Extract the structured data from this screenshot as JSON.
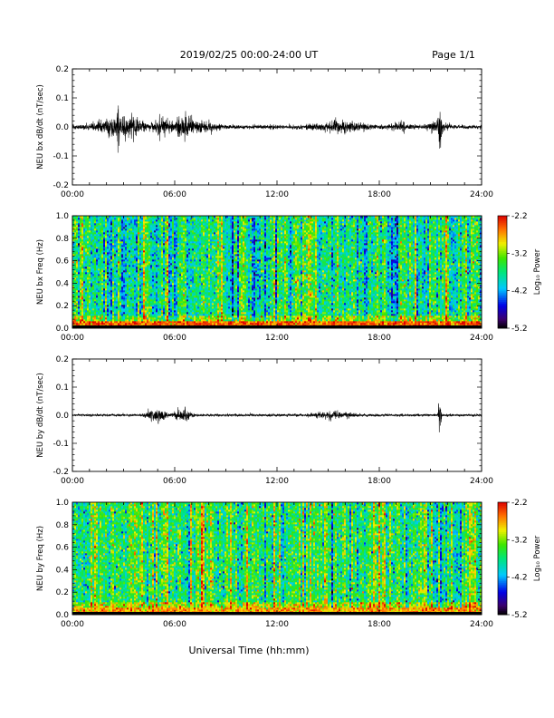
{
  "header": {
    "title": "2019/02/25  00:00-24:00 UT",
    "page": "Page 1/1"
  },
  "xaxis": {
    "label": "Universal Time (hh:mm)",
    "range": [
      0,
      24
    ],
    "ticks": [
      0,
      6,
      12,
      18,
      24
    ],
    "tick_labels": [
      "00:00",
      "06:00",
      "12:00",
      "18:00",
      "24:00"
    ]
  },
  "chart_data": [
    {
      "id": "bx-wave",
      "type": "line",
      "ylabel": "NEU bx dB/dt (nT/sec)",
      "ylim": [
        -0.2,
        0.2
      ],
      "yticks": [
        -0.2,
        -0.1,
        0.0,
        0.1,
        0.2
      ],
      "ytick_labels": [
        "-0.2",
        "-0.1",
        "0.0",
        "0.1",
        "0.2"
      ],
      "xlim": [
        0,
        24
      ],
      "baseline_amplitude": 0.006,
      "bursts": [
        {
          "t": 2.3,
          "width": 0.9,
          "amp": 0.025
        },
        {
          "t": 2.65,
          "width": 0.08,
          "amp": 0.06
        },
        {
          "t": 3.5,
          "width": 0.6,
          "amp": 0.03
        },
        {
          "t": 5.2,
          "width": 0.5,
          "amp": 0.025
        },
        {
          "t": 6.5,
          "width": 0.5,
          "amp": 0.035
        },
        {
          "t": 7.6,
          "width": 0.8,
          "amp": 0.012
        },
        {
          "t": 15.8,
          "width": 1.5,
          "amp": 0.012
        },
        {
          "t": 19.2,
          "width": 0.6,
          "amp": 0.01
        },
        {
          "t": 21.4,
          "width": 0.5,
          "amp": 0.02
        },
        {
          "t": 21.55,
          "width": 0.06,
          "amp": 0.09
        }
      ]
    },
    {
      "id": "bx-spec",
      "type": "heatmap",
      "ylabel": "NEU bx Freq (Hz)",
      "ylim": [
        0.0,
        1.0
      ],
      "yticks": [
        0.0,
        0.2,
        0.4,
        0.6,
        0.8,
        1.0
      ],
      "ytick_labels": [
        "0.0",
        "0.2",
        "0.4",
        "0.6",
        "0.8",
        "1.0"
      ],
      "xlim": [
        0,
        24
      ],
      "colorbar": {
        "label": "Log₁₀ Power",
        "range": [
          -5.2,
          -2.2
        ],
        "ticks": [
          -2.2,
          -3.2,
          -4.2,
          -5.2
        ],
        "tick_labels": [
          "-2.2",
          "-3.2",
          "-4.2",
          "-5.2"
        ]
      },
      "typical_log_power": -3.7,
      "low_freq_log_power": -2.5
    },
    {
      "id": "by-wave",
      "type": "line",
      "ylabel": "NEU by dB/dt (nT/sec)",
      "ylim": [
        -0.2,
        0.2
      ],
      "yticks": [
        -0.2,
        -0.1,
        0.0,
        0.1,
        0.2
      ],
      "ytick_labels": [
        "-0.2",
        "-0.1",
        "0.0",
        "0.1",
        "0.2"
      ],
      "xlim": [
        0,
        24
      ],
      "baseline_amplitude": 0.004,
      "bursts": [
        {
          "t": 4.9,
          "width": 0.5,
          "amp": 0.02
        },
        {
          "t": 6.5,
          "width": 0.4,
          "amp": 0.02
        },
        {
          "t": 15.2,
          "width": 1.0,
          "amp": 0.01
        },
        {
          "t": 21.55,
          "width": 0.08,
          "amp": 0.05
        }
      ]
    },
    {
      "id": "by-spec",
      "type": "heatmap",
      "ylabel": "NEU by Freq (Hz)",
      "ylim": [
        0.0,
        1.0
      ],
      "yticks": [
        0.0,
        0.2,
        0.4,
        0.6,
        0.8,
        1.0
      ],
      "ytick_labels": [
        "0.0",
        "0.2",
        "0.4",
        "0.6",
        "0.8",
        "1.0"
      ],
      "xlim": [
        0,
        24
      ],
      "colorbar": {
        "label": "Log₁₀ Power",
        "range": [
          -5.2,
          -2.2
        ],
        "ticks": [
          -2.2,
          -3.2,
          -4.2,
          -5.2
        ],
        "tick_labels": [
          "-2.2",
          "-3.2",
          "-4.2",
          "-5.2"
        ]
      },
      "typical_log_power": -3.6,
      "low_freq_log_power": -2.7
    }
  ]
}
